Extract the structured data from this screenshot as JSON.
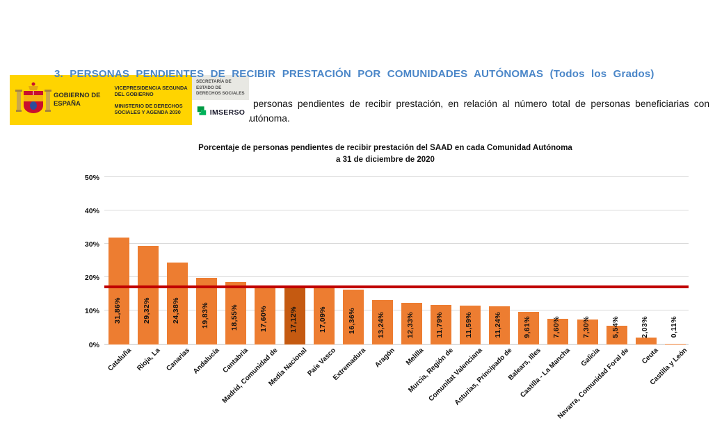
{
  "header": {
    "gobierno_label": "GOBIERNO DE ESPAÑA",
    "vicepresidencia_label": "VICEPRESIDENCIA SEGUNDA DEL GOBIERNO",
    "ministerio_label": "MINISTERIO DE DERECHOS SOCIALES Y AGENDA 2030",
    "secretaria_label": "SECRETARÍA DE ESTADO DE DERECHOS SOCIALES",
    "imserso_label": "IMSERSO",
    "logo_yellow": "#FFD400",
    "imserso_green": "#009A44"
  },
  "section": {
    "heading": "3. PERSONAS PENDIENTES DE RECIBIR PRESTACIÓN POR COMUNIDADES AUTÓNOMAS (Todos los Grados)",
    "heading_color": "#4A86C8",
    "paragraph": "A continuación se expone el porcentaje de personas pendientes de recibir prestación, en relación al número total de personas beneficiarias con derecho a prestación, en cada Comunidad Autónoma."
  },
  "chart_data": {
    "type": "bar",
    "title": "Porcentaje de personas pendientes de recibir prestación del SAAD en cada Comunidad Autónoma",
    "subtitle": "a 31 de diciembre de 2020",
    "categories": [
      "Cataluña",
      "Rioja, La",
      "Canarias",
      "Andalucía",
      "Cantabria",
      "Madrid, Comunidad de",
      "Media Nacional",
      "País Vasco",
      "Extremadura",
      "Aragón",
      "Melilla",
      "Murcia, Región de",
      "Comunitat Valenciana",
      "Asturias, Principado de",
      "Balears, Illes",
      "Castilla - La Mancha",
      "Galicia",
      "Navarra, Comunidad Foral de",
      "Ceuta",
      "Castilla y León"
    ],
    "values": [
      31.86,
      29.32,
      24.38,
      19.83,
      18.55,
      17.6,
      17.12,
      17.09,
      16.36,
      13.24,
      12.33,
      11.79,
      11.59,
      11.24,
      9.61,
      7.6,
      7.3,
      5.54,
      2.03,
      0.11
    ],
    "value_labels": [
      "31,86%",
      "29,32%",
      "24,38%",
      "19,83%",
      "18,55%",
      "17,60%",
      "17,12%",
      "17,09%",
      "16,36%",
      "13,24%",
      "12,33%",
      "11,79%",
      "11,59%",
      "11,24%",
      "9,61%",
      "7,60%",
      "7,30%",
      "5,54%",
      "2,03%",
      "0,11%"
    ],
    "ytick_labels": [
      "0%",
      "10%",
      "20%",
      "30%",
      "40%",
      "50%"
    ],
    "ylim": [
      0,
      50
    ],
    "grid": true,
    "legend": "none",
    "bar_color": "#ED7D31",
    "highlight_index": 6,
    "highlight_color": "#C55A11",
    "reference_line": {
      "value": 17.12,
      "color": "#C00000",
      "represents": "Media Nacional"
    }
  }
}
